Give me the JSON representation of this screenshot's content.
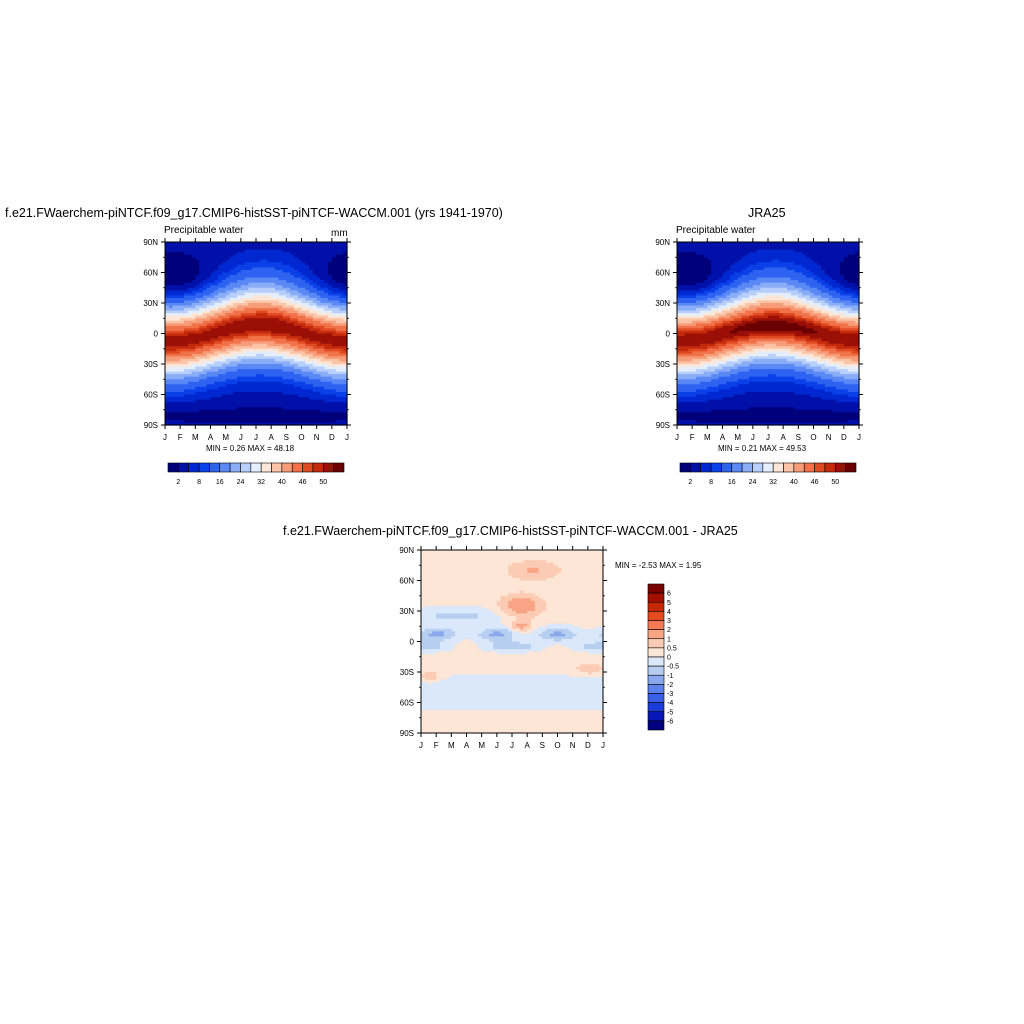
{
  "chart_data": [
    {
      "type": "heatmap",
      "title": "f.e21.FWaerchem-piNTCF.f09_g17.CMIP6-histSST-piNTCF-WACCM.001 (yrs 1941-1970)",
      "left_label": "Precipitable water",
      "units": "mm",
      "x_ticks": [
        "J",
        "F",
        "M",
        "A",
        "M",
        "J",
        "J",
        "A",
        "S",
        "O",
        "N",
        "D",
        "J"
      ],
      "y_ticks": [
        "90N",
        "60N",
        "30N",
        "0",
        "30S",
        "60S",
        "90S"
      ],
      "stats": "MIN =   0.26 MAX =  48.18",
      "min": 0.26,
      "max": 48.18,
      "colorbar": {
        "labels": [
          "2",
          "8",
          "16",
          "24",
          "32",
          "40",
          "46",
          "50"
        ],
        "levels": [
          2,
          4,
          6,
          8,
          12,
          16,
          20,
          24,
          28,
          32,
          36,
          40,
          44,
          46,
          48,
          50
        ]
      }
    },
    {
      "type": "heatmap",
      "title": "JRA25",
      "left_label": "Precipitable water",
      "x_ticks": [
        "J",
        "F",
        "M",
        "A",
        "M",
        "J",
        "J",
        "A",
        "S",
        "O",
        "N",
        "D",
        "J"
      ],
      "y_ticks": [
        "90N",
        "60N",
        "30N",
        "0",
        "30S",
        "60S",
        "90S"
      ],
      "stats": "MIN =   0.21 MAX =  49.53",
      "min": 0.21,
      "max": 49.53,
      "colorbar": {
        "labels": [
          "2",
          "8",
          "16",
          "24",
          "32",
          "40",
          "46",
          "50"
        ]
      }
    },
    {
      "type": "heatmap",
      "title": "f.e21.FWaerchem-piNTCF.f09_g17.CMIP6-histSST-piNTCF-WACCM.001 - JRA25",
      "x_ticks": [
        "J",
        "F",
        "M",
        "A",
        "M",
        "J",
        "J",
        "A",
        "S",
        "O",
        "N",
        "D",
        "J"
      ],
      "y_ticks": [
        "90N",
        "60N",
        "30N",
        "0",
        "30S",
        "60S",
        "90S"
      ],
      "stats": "MIN =  -2.53 MAX =   1.95",
      "min": -2.53,
      "max": 1.95,
      "colorbar": {
        "labels": [
          "6",
          "5",
          "4",
          "3",
          "2",
          "1",
          "0.5",
          "0",
          "-0.5",
          "-1",
          "-2",
          "-3",
          "-4",
          "-5",
          "-6"
        ]
      }
    }
  ],
  "colors": {
    "abs_ramp": [
      "#00007a",
      "#0010a8",
      "#0028d0",
      "#0a40e8",
      "#2e62f0",
      "#5a88f5",
      "#8aadf8",
      "#b8cffb",
      "#e4eefc",
      "#fde6d5",
      "#fbc4a6",
      "#f79c78",
      "#f17248",
      "#e04a22",
      "#c42a0c",
      "#9a1006",
      "#6a0000"
    ],
    "diff_ramp": [
      "#7a0000",
      "#a50f00",
      "#c82800",
      "#e44a1c",
      "#f47a52",
      "#f9a585",
      "#fbcbb3",
      "#fde6d5",
      "#dbe8fb",
      "#b6ceef",
      "#8aa8ee",
      "#5c82ec",
      "#3a5ee8",
      "#1c3cd8",
      "#0818b8",
      "#000080"
    ]
  }
}
